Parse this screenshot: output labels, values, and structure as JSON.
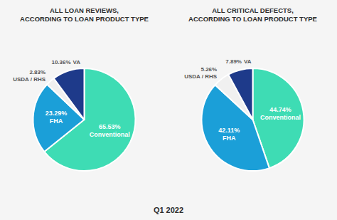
{
  "chart_data": [
    {
      "type": "pie",
      "title": "ALL LOAN REVIEWS,\nACCORDING TO LOAN PRODUCT TYPE",
      "categories": [
        "Conventional",
        "FHA",
        "USDA / RHS",
        "VA"
      ],
      "values": [
        65.53,
        23.29,
        2.83,
        10.36
      ],
      "value_labels": [
        "65.53%",
        "23.29%",
        "2.83%",
        "10.36%"
      ],
      "colors": [
        "#3EDCB4",
        "#1B9FD8",
        "#F0F0F0",
        "#1E3A8A"
      ],
      "annotations": [
        "Q1 2022"
      ]
    },
    {
      "type": "pie",
      "title": "ALL CRITICAL DEFECTS,\nACCORDING TO LOAN PRODUCT TYPE",
      "categories": [
        "Conventional",
        "FHA",
        "USDA / RHS",
        "VA"
      ],
      "values": [
        44.74,
        42.11,
        5.26,
        7.89
      ],
      "value_labels": [
        "44.74%",
        "42.11%",
        "5.26%",
        "7.89%"
      ],
      "colors": [
        "#3EDCB4",
        "#1B9FD8",
        "#F0F0F0",
        "#1E3A8A"
      ]
    }
  ]
}
